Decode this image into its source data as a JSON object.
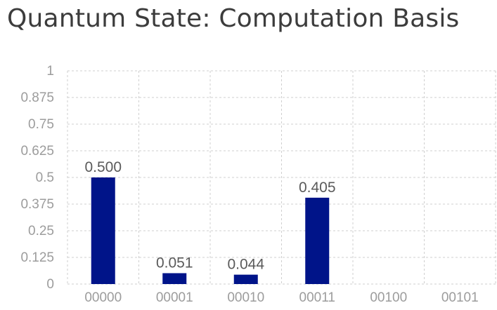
{
  "chart_data": {
    "type": "bar",
    "title": "Quantum State: Computation Basis",
    "categories": [
      "00000",
      "00001",
      "00010",
      "00011",
      "00100",
      "00101"
    ],
    "values": [
      0.5,
      0.051,
      0.044,
      0.405,
      0,
      0
    ],
    "data_labels": [
      "0.500",
      "0.051",
      "0.044",
      "0.405",
      "",
      ""
    ],
    "yticks": [
      "0",
      "0.125",
      "0.25",
      "0.375",
      "0.5",
      "0.625",
      "0.75",
      "0.875",
      "1"
    ],
    "ylim": [
      0,
      1
    ],
    "grid": true,
    "bar_color": "#001489"
  }
}
